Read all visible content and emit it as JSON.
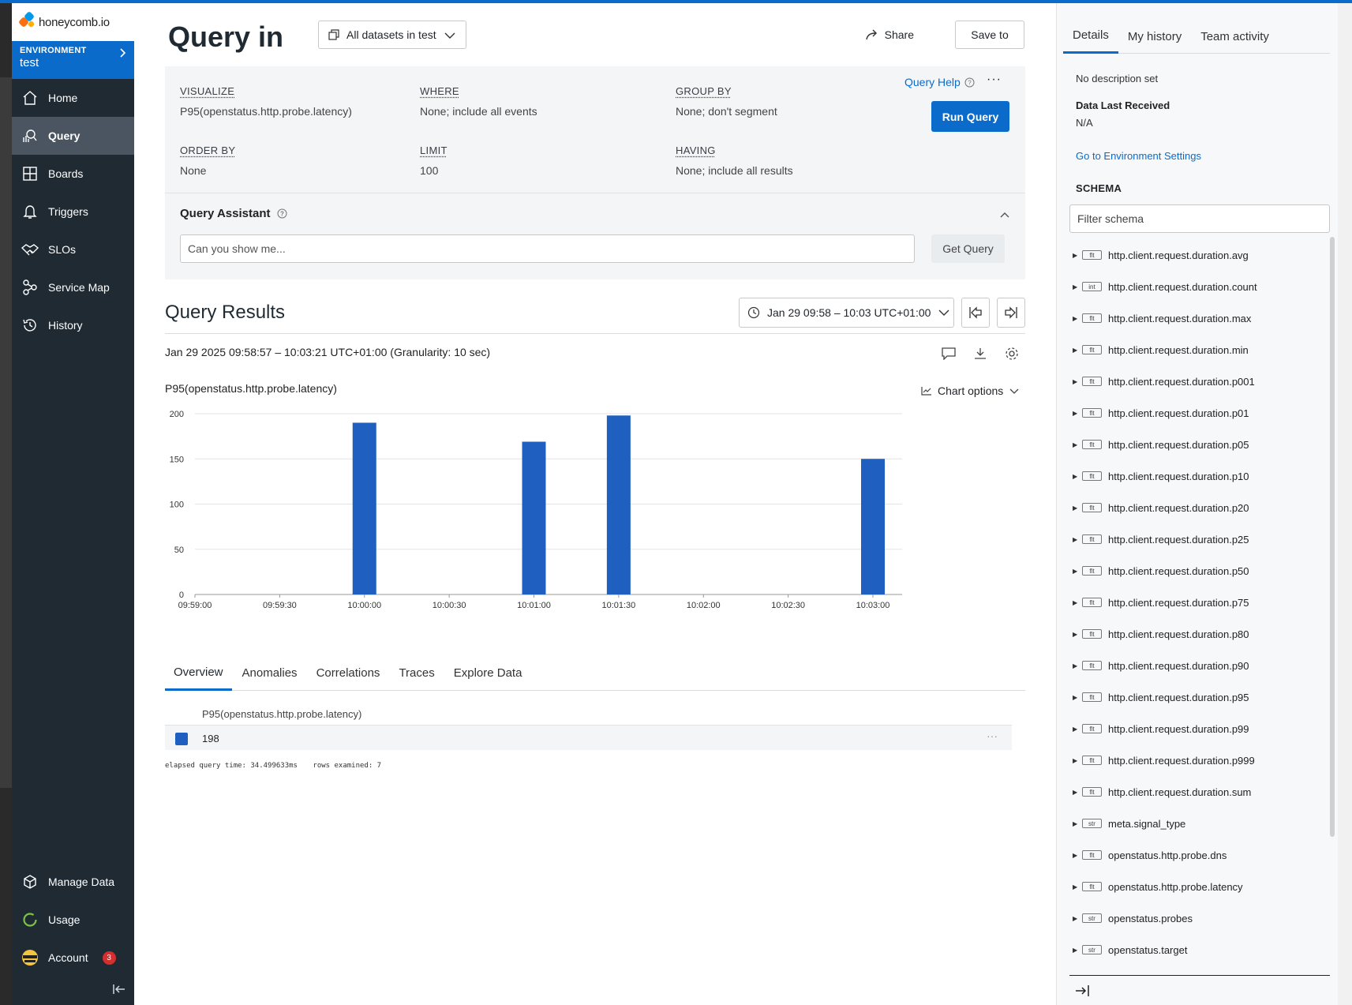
{
  "sidebar": {
    "logo_text": "honeycomb.io",
    "environment_label": "ENVIRONMENT",
    "environment_name": "test",
    "items": [
      {
        "label": "Home",
        "icon": "home-icon"
      },
      {
        "label": "Query",
        "icon": "query-icon",
        "active": true
      },
      {
        "label": "Boards",
        "icon": "boards-icon"
      },
      {
        "label": "Triggers",
        "icon": "bell-icon"
      },
      {
        "label": "SLOs",
        "icon": "handshake-icon"
      },
      {
        "label": "Service Map",
        "icon": "service-map-icon"
      },
      {
        "label": "History",
        "icon": "history-icon"
      }
    ],
    "bottom": [
      {
        "label": "Manage Data",
        "icon": "cube-icon"
      },
      {
        "label": "Usage",
        "icon": "usage-ring-icon"
      },
      {
        "label": "Account",
        "icon": "avatar-icon",
        "badge": "3"
      }
    ]
  },
  "header": {
    "title": "Query in",
    "dataset": "All datasets in test",
    "share": "Share",
    "save": "Save to"
  },
  "builder": {
    "visualize_label": "VISUALIZE",
    "visualize_value": "P95(openstatus.http.probe.latency)",
    "where_label": "WHERE",
    "where_value": "None; include all events",
    "groupby_label": "GROUP BY",
    "groupby_value": "None; don't segment",
    "orderby_label": "ORDER BY",
    "orderby_value": "None",
    "limit_label": "LIMIT",
    "limit_value": "100",
    "having_label": "HAVING",
    "having_value": "None; include all results",
    "query_help": "Query Help",
    "run": "Run Query"
  },
  "assistant": {
    "title": "Query Assistant",
    "placeholder": "Can you show me...",
    "get": "Get Query"
  },
  "results": {
    "title": "Query Results",
    "time_range": "Jan 29 09:58 – 10:03 UTC+01:00",
    "range_text": "Jan 29 2025 09:58:57 – 10:03:21 UTC+01:00 (Granularity: 10 sec)",
    "chart_title": "P95(openstatus.http.probe.latency)",
    "chart_options": "Chart options"
  },
  "chart_data": {
    "type": "bar",
    "title": "P95(openstatus.http.probe.latency)",
    "xlabel": "",
    "ylabel": "",
    "x_ticks": [
      "09:59:00",
      "09:59:30",
      "10:00:00",
      "10:00:30",
      "10:01:00",
      "10:01:30",
      "10:02:00",
      "10:02:30",
      "10:03:00"
    ],
    "y_ticks": [
      0,
      50,
      100,
      150,
      200
    ],
    "ylim": [
      0,
      200
    ],
    "series": [
      {
        "color": "#1f5fbf",
        "points": [
          {
            "x": "10:00:00",
            "y": 190
          },
          {
            "x": "10:01:00",
            "y": 169
          },
          {
            "x": "10:01:30",
            "y": 198
          },
          {
            "x": "10:03:00",
            "y": 150
          }
        ]
      }
    ],
    "grid": true
  },
  "result_tabs": [
    "Overview",
    "Anomalies",
    "Correlations",
    "Traces",
    "Explore Data"
  ],
  "table": {
    "header": "P95(openstatus.http.probe.latency)",
    "value": "198"
  },
  "footer": {
    "elapsed": "elapsed query time: 34.499633ms",
    "rows": "rows examined: 7"
  },
  "panel": {
    "tabs": [
      "Details",
      "My history",
      "Team activity"
    ],
    "description": "No description set",
    "data_last_label": "Data Last Received",
    "data_last_value": "N/A",
    "env_link": "Go to Environment Settings",
    "schema_label": "SCHEMA",
    "filter_placeholder": "Filter schema",
    "schema": [
      {
        "type": "flt",
        "name": "http.client.request.duration.avg"
      },
      {
        "type": "int",
        "name": "http.client.request.duration.count"
      },
      {
        "type": "flt",
        "name": "http.client.request.duration.max"
      },
      {
        "type": "flt",
        "name": "http.client.request.duration.min"
      },
      {
        "type": "flt",
        "name": "http.client.request.duration.p001"
      },
      {
        "type": "flt",
        "name": "http.client.request.duration.p01"
      },
      {
        "type": "flt",
        "name": "http.client.request.duration.p05"
      },
      {
        "type": "flt",
        "name": "http.client.request.duration.p10"
      },
      {
        "type": "flt",
        "name": "http.client.request.duration.p20"
      },
      {
        "type": "flt",
        "name": "http.client.request.duration.p25"
      },
      {
        "type": "flt",
        "name": "http.client.request.duration.p50"
      },
      {
        "type": "flt",
        "name": "http.client.request.duration.p75"
      },
      {
        "type": "flt",
        "name": "http.client.request.duration.p80"
      },
      {
        "type": "flt",
        "name": "http.client.request.duration.p90"
      },
      {
        "type": "flt",
        "name": "http.client.request.duration.p95"
      },
      {
        "type": "flt",
        "name": "http.client.request.duration.p99"
      },
      {
        "type": "flt",
        "name": "http.client.request.duration.p999"
      },
      {
        "type": "flt",
        "name": "http.client.request.duration.sum"
      },
      {
        "type": "str",
        "name": "meta.signal_type"
      },
      {
        "type": "flt",
        "name": "openstatus.http.probe.dns"
      },
      {
        "type": "flt",
        "name": "openstatus.http.probe.latency"
      },
      {
        "type": "str",
        "name": "openstatus.probes"
      },
      {
        "type": "str",
        "name": "openstatus.target"
      }
    ]
  }
}
